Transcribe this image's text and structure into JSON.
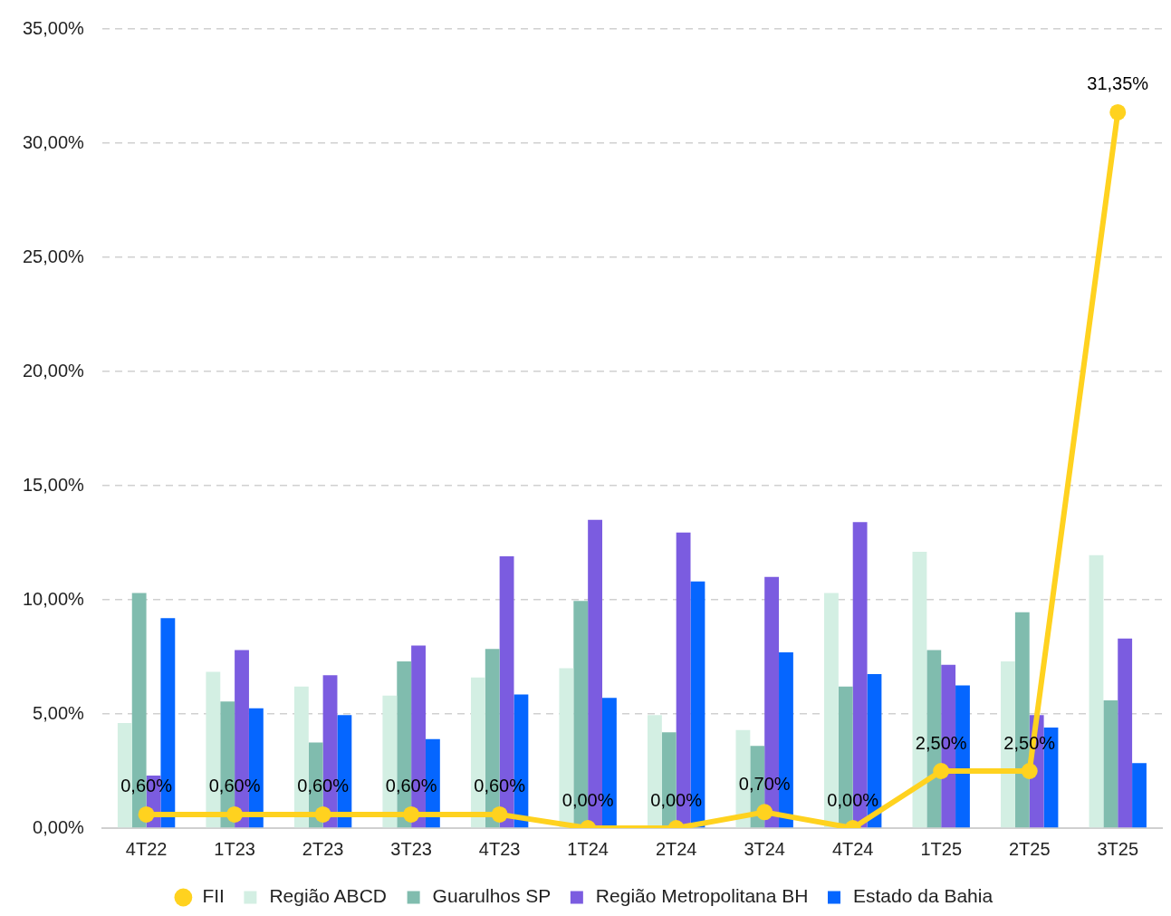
{
  "chart_data": {
    "type": "bar",
    "categories": [
      "4T22",
      "1T23",
      "2T23",
      "3T23",
      "4T23",
      "1T24",
      "2T24",
      "3T24",
      "4T24",
      "1T25",
      "2T25",
      "3T25"
    ],
    "series": [
      {
        "name": "Região ABCD",
        "color": "#d3efe3",
        "values": [
          4.6,
          6.85,
          6.2,
          5.8,
          6.6,
          7.0,
          4.95,
          4.3,
          10.3,
          12.1,
          7.3,
          11.95
        ]
      },
      {
        "name": "Guarulhos SP",
        "color": "#80bcae",
        "values": [
          10.3,
          5.55,
          3.75,
          7.3,
          7.85,
          9.95,
          4.2,
          3.6,
          6.2,
          7.8,
          9.45,
          5.6
        ]
      },
      {
        "name": "Região Metropolitana BH",
        "color": "#7b5ce0",
        "values": [
          2.3,
          7.8,
          6.7,
          8.0,
          11.9,
          13.5,
          12.95,
          11.0,
          13.4,
          7.15,
          4.95,
          8.3
        ]
      },
      {
        "name": "Estado da Bahia",
        "color": "#0566ff",
        "values": [
          9.2,
          5.25,
          4.95,
          3.9,
          5.85,
          5.7,
          10.8,
          7.7,
          6.75,
          6.25,
          4.4,
          2.85
        ]
      },
      {
        "name": "FII",
        "type": "line",
        "color": "#ffd21f",
        "marker": "circle",
        "values": [
          0.6,
          0.6,
          0.6,
          0.6,
          0.6,
          0.0,
          0.0,
          0.7,
          0.0,
          2.5,
          2.5,
          31.35
        ],
        "value_labels": [
          "0,60%",
          "0,60%",
          "0,60%",
          "0,60%",
          "0,60%",
          "0,00%",
          "0,00%",
          "0,70%",
          "0,00%",
          "2,50%",
          "2,50%",
          "31,35%"
        ]
      }
    ],
    "ylim": [
      0,
      35
    ],
    "yticks": [
      {
        "value": 0,
        "label": "0,00%"
      },
      {
        "value": 5,
        "label": "5,00%"
      },
      {
        "value": 10,
        "label": "10,00%"
      },
      {
        "value": 15,
        "label": "15,00%"
      },
      {
        "value": 20,
        "label": "20,00%"
      },
      {
        "value": 25,
        "label": "25,00%"
      },
      {
        "value": 30,
        "label": "30,00%"
      },
      {
        "value": 35,
        "label": "35,00%"
      }
    ],
    "grid": "y",
    "legend": "bottom"
  }
}
